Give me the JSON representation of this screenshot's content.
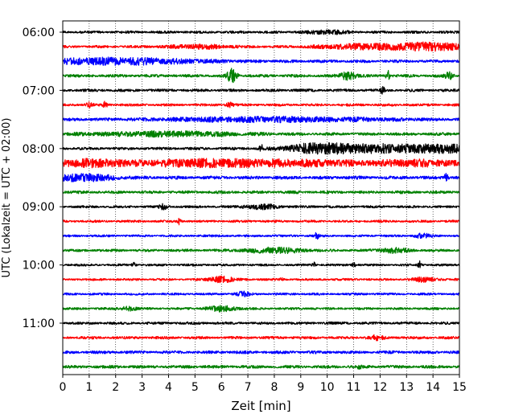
{
  "chart_data": {
    "type": "line",
    "title": "",
    "xlabel": "Zeit  [min]",
    "ylabel": "UTC (Lokalzeit = UTC + 02:00)",
    "xlim": [
      0,
      15
    ],
    "x_ticks": [
      0,
      1,
      2,
      3,
      4,
      5,
      6,
      7,
      8,
      9,
      10,
      11,
      12,
      13,
      14,
      15
    ],
    "y_tick_labels": [
      "06:00",
      "07:00",
      "08:00",
      "09:00",
      "10:00",
      "11:00"
    ],
    "grid": "vertical-dotted",
    "trace_colors": [
      "#000000",
      "#ff0000",
      "#0000ff",
      "#008000"
    ],
    "traces": [
      {
        "start": "06:00",
        "color": "#000000",
        "amp": 1.6,
        "events": [
          {
            "t": 10.0,
            "a": 2.0,
            "w": 0.5
          }
        ]
      },
      {
        "start": "06:15",
        "color": "#ff0000",
        "amp": 1.6,
        "events": [
          {
            "t": 11.5,
            "a": 3.0,
            "w": 1.2
          },
          {
            "t": 14.0,
            "a": 4.5,
            "w": 0.9
          },
          {
            "t": 5.2,
            "a": 2.0,
            "w": 0.8
          }
        ]
      },
      {
        "start": "06:30",
        "color": "#0000ff",
        "amp": 1.8,
        "events": [
          {
            "t": 2.0,
            "a": 3.5,
            "w": 2.2
          }
        ]
      },
      {
        "start": "06:45",
        "color": "#008000",
        "amp": 1.8,
        "events": [
          {
            "t": 6.4,
            "a": 9.0,
            "w": 0.12
          },
          {
            "t": 10.8,
            "a": 5.0,
            "w": 0.2
          },
          {
            "t": 12.3,
            "a": 6.0,
            "w": 0.05
          },
          {
            "t": 14.6,
            "a": 4.0,
            "w": 0.1
          }
        ]
      },
      {
        "start": "07:00",
        "color": "#000000",
        "amp": 1.7,
        "events": [
          {
            "t": 12.1,
            "a": 4.0,
            "w": 0.05
          }
        ]
      },
      {
        "start": "07:15",
        "color": "#ff0000",
        "amp": 1.6,
        "events": [
          {
            "t": 1.6,
            "a": 4.0,
            "w": 0.05
          },
          {
            "t": 1.0,
            "a": 2.5,
            "w": 0.1
          },
          {
            "t": 6.3,
            "a": 2.5,
            "w": 0.1
          }
        ]
      },
      {
        "start": "07:30",
        "color": "#0000ff",
        "amp": 1.7,
        "events": [
          {
            "t": 8.0,
            "a": 2.5,
            "w": 3.0
          }
        ]
      },
      {
        "start": "07:45",
        "color": "#008000",
        "amp": 1.8,
        "events": [
          {
            "t": 4.0,
            "a": 2.5,
            "w": 2.0
          }
        ]
      },
      {
        "start": "08:00",
        "color": "#000000",
        "amp": 1.7,
        "events": [
          {
            "t": 7.5,
            "a": 4.0,
            "w": 0.05
          },
          {
            "t": 9.5,
            "a": 4.5,
            "w": 0.8
          },
          {
            "t": 11.8,
            "a": 4.8,
            "w": 1.5
          },
          {
            "t": 14.5,
            "a": 4.0,
            "w": 0.8
          }
        ]
      },
      {
        "start": "08:15",
        "color": "#ff0000",
        "amp": 2.0,
        "events": [
          {
            "t": 1.0,
            "a": 4.0,
            "w": 1.0
          },
          {
            "t": 5.0,
            "a": 3.5,
            "w": 1.8
          },
          {
            "t": 9.0,
            "a": 3.0,
            "w": 2.0
          },
          {
            "t": 13.5,
            "a": 3.0,
            "w": 1.2
          }
        ]
      },
      {
        "start": "08:30",
        "color": "#0000ff",
        "amp": 2.0,
        "events": [
          {
            "t": 0.8,
            "a": 3.8,
            "w": 0.8
          },
          {
            "t": 14.5,
            "a": 5.0,
            "w": 0.05
          }
        ]
      },
      {
        "start": "08:45",
        "color": "#008000",
        "amp": 1.8,
        "events": []
      },
      {
        "start": "09:00",
        "color": "#000000",
        "amp": 1.5,
        "events": [
          {
            "t": 3.8,
            "a": 3.0,
            "w": 0.1
          },
          {
            "t": 7.5,
            "a": 2.5,
            "w": 0.5
          }
        ]
      },
      {
        "start": "09:15",
        "color": "#ff0000",
        "amp": 1.5,
        "events": [
          {
            "t": 4.4,
            "a": 3.5,
            "w": 0.05
          }
        ]
      },
      {
        "start": "09:30",
        "color": "#0000ff",
        "amp": 1.4,
        "events": [
          {
            "t": 9.6,
            "a": 4.0,
            "w": 0.05
          },
          {
            "t": 13.6,
            "a": 2.5,
            "w": 0.2
          }
        ]
      },
      {
        "start": "09:45",
        "color": "#008000",
        "amp": 1.6,
        "events": [
          {
            "t": 8.0,
            "a": 3.0,
            "w": 0.8
          },
          {
            "t": 12.5,
            "a": 2.5,
            "w": 0.4
          }
        ]
      },
      {
        "start": "10:00",
        "color": "#000000",
        "amp": 1.4,
        "events": [
          {
            "t": 2.7,
            "a": 3.0,
            "w": 0.05
          },
          {
            "t": 9.5,
            "a": 3.0,
            "w": 0.05
          },
          {
            "t": 13.5,
            "a": 4.0,
            "w": 0.05
          },
          {
            "t": 11.0,
            "a": 2.5,
            "w": 0.05
          }
        ]
      },
      {
        "start": "10:15",
        "color": "#ff0000",
        "amp": 1.4,
        "events": [
          {
            "t": 6.0,
            "a": 3.5,
            "w": 0.3
          },
          {
            "t": 13.7,
            "a": 2.5,
            "w": 0.3
          },
          {
            "t": 8.3,
            "a": 2.5,
            "w": 0.05
          }
        ]
      },
      {
        "start": "10:30",
        "color": "#0000ff",
        "amp": 1.4,
        "events": [
          {
            "t": 6.8,
            "a": 2.5,
            "w": 0.2
          }
        ]
      },
      {
        "start": "10:45",
        "color": "#008000",
        "amp": 1.5,
        "events": [
          {
            "t": 2.5,
            "a": 2.5,
            "w": 0.2
          },
          {
            "t": 6.0,
            "a": 3.0,
            "w": 0.4
          }
        ]
      },
      {
        "start": "11:00",
        "color": "#000000",
        "amp": 1.6,
        "events": []
      },
      {
        "start": "11:15",
        "color": "#ff0000",
        "amp": 1.7,
        "events": [
          {
            "t": 11.8,
            "a": 2.5,
            "w": 0.2
          }
        ]
      },
      {
        "start": "11:30",
        "color": "#0000ff",
        "amp": 1.8,
        "events": []
      },
      {
        "start": "11:45",
        "color": "#008000",
        "amp": 1.9,
        "events": [
          {
            "t": 11.2,
            "a": 2.5,
            "w": 0.05
          }
        ]
      }
    ]
  }
}
